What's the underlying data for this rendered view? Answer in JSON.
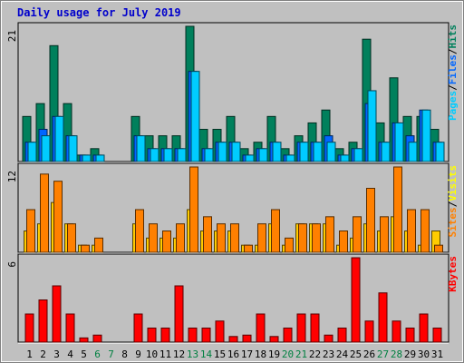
{
  "title": "Daily usage for July 2019",
  "chart_data": {
    "type": "bar",
    "categories": [
      "1",
      "2",
      "3",
      "4",
      "5",
      "6",
      "7",
      "8",
      "9",
      "10",
      "11",
      "12",
      "13",
      "14",
      "15",
      "16",
      "17",
      "18",
      "19",
      "20",
      "21",
      "22",
      "23",
      "24",
      "25",
      "26",
      "27",
      "28",
      "29",
      "30",
      "31"
    ],
    "weekend_days": [
      "6",
      "7",
      "13",
      "14",
      "20",
      "21",
      "27",
      "28"
    ],
    "panels": [
      {
        "name": "pages-files-hits",
        "max_label": "21",
        "ylim": [
          0,
          21
        ],
        "legend": [
          {
            "text": "Pages",
            "color": "#00ccff"
          },
          {
            "text": "/",
            "color": "#000000"
          },
          {
            "text": "Files",
            "color": "#0066ff"
          },
          {
            "text": "/",
            "color": "#000000"
          },
          {
            "text": "Hits",
            "color": "#00805c"
          }
        ],
        "series": [
          {
            "name": "Hits",
            "color": "#00805c",
            "values": [
              7,
              9,
              18,
              9,
              1,
              2,
              0,
              0,
              7,
              4,
              4,
              4,
              21,
              5,
              5,
              7,
              2,
              3,
              7,
              2,
              4,
              6,
              8,
              2,
              3,
              19,
              6,
              13,
              7,
              7,
              5
            ]
          },
          {
            "name": "Files",
            "color": "#0066ff",
            "values": [
              3,
              5,
              7,
              4,
              1,
              1,
              0,
              0,
              4,
              2,
              2,
              2,
              14,
              2,
              3,
              3,
              1,
              2,
              3,
              1,
              3,
              3,
              4,
              1,
              2,
              9,
              3,
              6,
              4,
              8,
              3
            ]
          },
          {
            "name": "Pages",
            "color": "#00ccff",
            "values": [
              3,
              4,
              7,
              4,
              1,
              1,
              0,
              0,
              4,
              2,
              2,
              2,
              14,
              2,
              3,
              3,
              1,
              2,
              3,
              1,
              3,
              3,
              3,
              1,
              2,
              11,
              3,
              6,
              3,
              8,
              3
            ]
          }
        ]
      },
      {
        "name": "visits-sites",
        "max_label": "12",
        "ylim": [
          0,
          12
        ],
        "legend": [
          {
            "text": "Sites",
            "color": "#ff8000"
          },
          {
            "text": "/",
            "color": "#000000"
          },
          {
            "text": "Visits",
            "color": "#ffff00"
          }
        ],
        "series": [
          {
            "name": "Visits",
            "color": "#ffcc00",
            "values": [
              3,
              4,
              7,
              4,
              1,
              1,
              0,
              0,
              4,
              2,
              2,
              2,
              6,
              3,
              3,
              3,
              1,
              1,
              4,
              1,
              4,
              4,
              4,
              1,
              2,
              4,
              3,
              5,
              3,
              1,
              3
            ]
          },
          {
            "name": "Sites",
            "color": "#ff8000",
            "values": [
              6,
              11,
              10,
              4,
              1,
              2,
              0,
              0,
              6,
              4,
              3,
              4,
              12,
              5,
              4,
              4,
              1,
              4,
              6,
              2,
              4,
              4,
              5,
              3,
              5,
              9,
              5,
              12,
              6,
              6,
              1
            ]
          }
        ]
      },
      {
        "name": "kbytes",
        "max_label": "6",
        "ylim": [
          0,
          6
        ],
        "legend": [
          {
            "text": "KBytes",
            "color": "#ff0000"
          }
        ],
        "series": [
          {
            "name": "KBytes",
            "color": "#ff0000",
            "values": [
              2,
              3,
              4,
              2,
              0.3,
              0.5,
              0,
              0,
              2,
              1,
              1,
              4,
              1,
              1,
              1.5,
              0.4,
              0.5,
              2,
              0.4,
              1,
              2,
              2,
              0.5,
              1,
              6,
              1.5,
              3.5,
              1.5,
              1,
              2,
              1
            ]
          }
        ]
      }
    ]
  }
}
